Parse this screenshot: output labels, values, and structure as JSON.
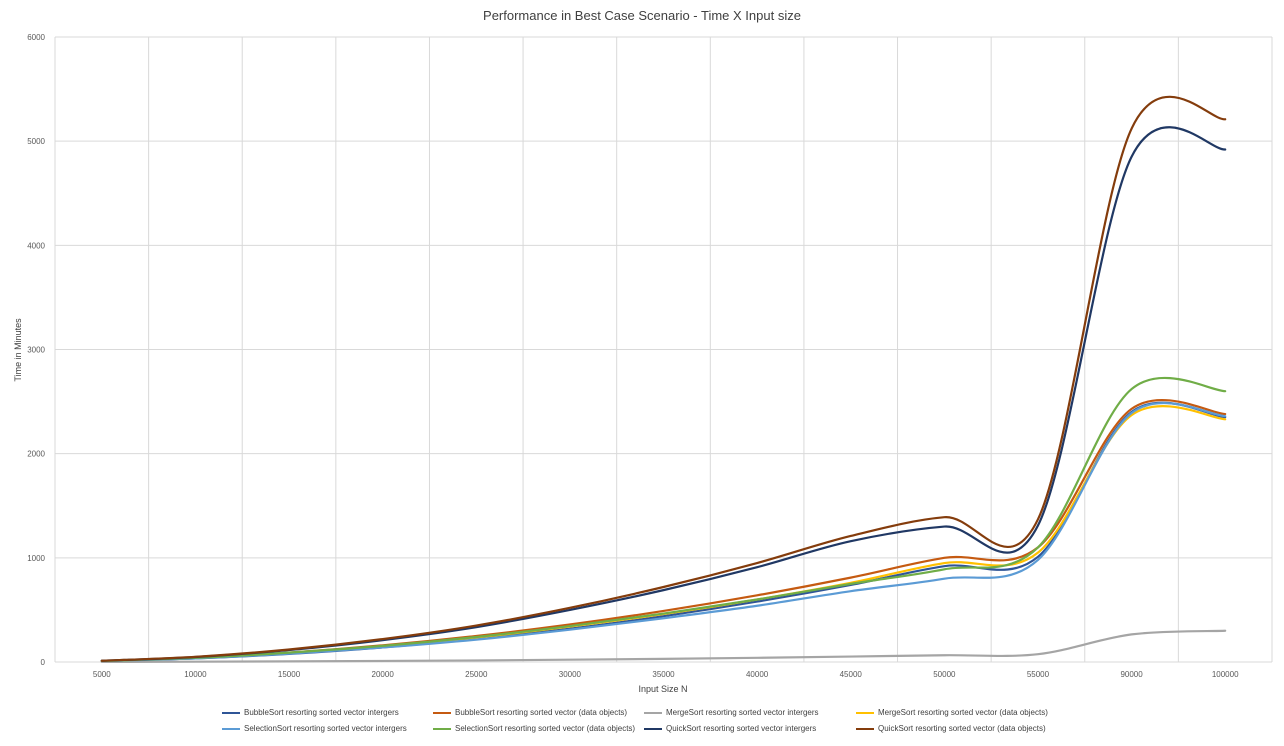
{
  "chart_data": {
    "type": "line",
    "title": "Performance in Best Case Scenario - Time X Input size",
    "xlabel": "Input Size N",
    "ylabel": "Time in Minutes",
    "ylim": [
      0,
      6000
    ],
    "yticks": [
      "0",
      "1000",
      "2000",
      "3000",
      "4000",
      "5000",
      "6000"
    ],
    "categories": [
      "5000",
      "10000",
      "15000",
      "20000",
      "25000",
      "30000",
      "35000",
      "40000",
      "45000",
      "50000",
      "55000",
      "90000",
      "100000"
    ],
    "legend_position": "bottom",
    "grid": true,
    "series": [
      {
        "name": "BubbleSort resorting sorted vector intergers",
        "color": "#2f5597",
        "values": [
          10,
          35,
          78,
          140,
          220,
          320,
          440,
          580,
          740,
          920,
          1010,
          2400,
          2350
        ]
      },
      {
        "name": "BubbleSort resorting sorted vector (data objects)",
        "color": "#c55a11",
        "values": [
          10,
          40,
          90,
          160,
          250,
          360,
          490,
          640,
          810,
          1000,
          1100,
          2430,
          2380
        ]
      },
      {
        "name": "MergeSort resorting sorted vector intergers",
        "color": "#a5a5a5",
        "values": [
          1,
          3,
          6,
          10,
          15,
          22,
          30,
          40,
          52,
          65,
          75,
          265,
          300
        ]
      },
      {
        "name": "MergeSort resorting sorted vector (data objects)",
        "color": "#ffc000",
        "values": [
          10,
          38,
          85,
          150,
          235,
          340,
          460,
          600,
          760,
          950,
          1050,
          2370,
          2330
        ]
      },
      {
        "name": "SelectionSort resorting sorted vector intergers",
        "color": "#5b9bd5",
        "values": [
          10,
          35,
          80,
          140,
          215,
          310,
          420,
          540,
          680,
          800,
          980,
          2390,
          2360
        ]
      },
      {
        "name": "SelectionSort resorting sorted vector (data objects)",
        "color": "#70ad47",
        "values": [
          10,
          40,
          90,
          155,
          240,
          345,
          465,
          600,
          750,
          890,
          1100,
          2620,
          2600
        ]
      },
      {
        "name": "QuickSort resorting sorted vector intergers",
        "color": "#203864",
        "values": [
          12,
          48,
          115,
          210,
          335,
          500,
          690,
          910,
          1160,
          1300,
          1310,
          4850,
          4920
        ]
      },
      {
        "name": "QuickSort resorting sorted vector (data objects)",
        "color": "#843c0c",
        "values": [
          12,
          50,
          120,
          220,
          350,
          520,
          720,
          950,
          1210,
          1390,
          1370,
          5120,
          5210
        ]
      }
    ]
  }
}
